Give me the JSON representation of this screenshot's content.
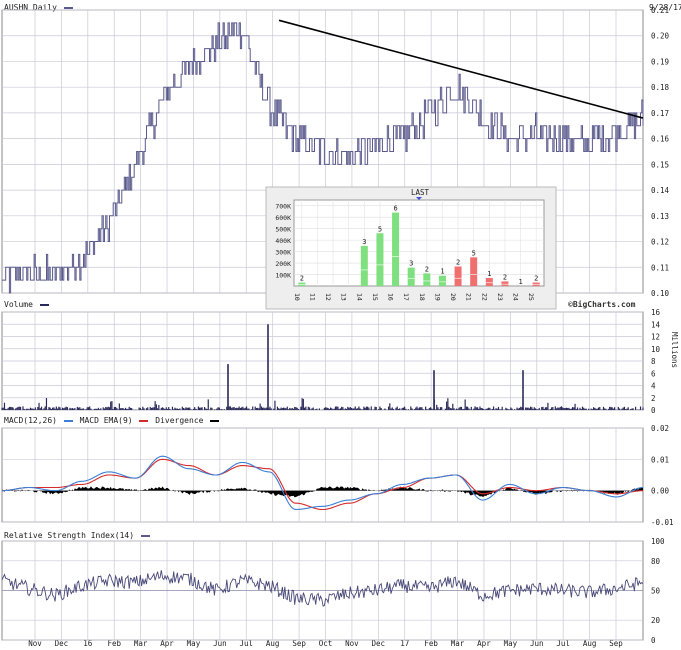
{
  "header": {
    "symbol_label": "AUSHN Daily",
    "date": "9/28/17"
  },
  "panels": {
    "volume_title": "Volume",
    "volume_units": "Millions",
    "macd_title": "MACD(12,26)",
    "macd_ema_label": "MACD EMA(9)",
    "macd_div_label": "Divergence",
    "rsi_title": "Relative Strength Index(14)",
    "credit": "©BigCharts.com"
  },
  "colors": {
    "price_line": "#5a5a8c",
    "trend_line": "#000000",
    "volume_bar": "#2a2a5a",
    "macd_line": "#3b7fd6",
    "ema_line": "#d62b2b",
    "divergence": "#000000",
    "vbp_up": "#7fe07f",
    "vbp_down": "#f07070",
    "grid": "#c9c9d6"
  },
  "chart_data": [
    {
      "type": "line",
      "name": "price",
      "title": "AUSHN Daily",
      "ylim": [
        0.1,
        0.21
      ],
      "yticks": [
        "0.21",
        "0.20",
        "0.19",
        "0.18",
        "0.17",
        "0.16",
        "0.15",
        "0.14",
        "0.13",
        "0.12",
        "0.11",
        "0.10"
      ],
      "x_months": [
        "Nov",
        "Dec",
        "16",
        "Feb",
        "Mar",
        "Apr",
        "May",
        "Jun",
        "Jul",
        "Aug",
        "Sep",
        "Oct",
        "Nov",
        "Dec",
        "17",
        "Feb",
        "Mar",
        "Apr",
        "May",
        "Jun",
        "Jul",
        "Aug",
        "Sep"
      ],
      "monthly_closes": [
        0.105,
        0.108,
        0.107,
        0.113,
        0.127,
        0.15,
        0.175,
        0.188,
        0.197,
        0.203,
        0.172,
        0.16,
        0.155,
        0.153,
        0.157,
        0.16,
        0.17,
        0.18,
        0.168,
        0.16,
        0.162,
        0.16,
        0.158,
        0.163,
        0.168
      ],
      "trendline": [
        {
          "date": "Aug 2016",
          "value": 0.206
        },
        {
          "date": "Sep 2017",
          "value": 0.168
        }
      ]
    },
    {
      "type": "bar",
      "name": "volume_by_price",
      "title": "LAST",
      "categories": [
        "10",
        "11",
        "12",
        "13",
        "14",
        "15",
        "16",
        "17",
        "18",
        "19",
        "20",
        "21",
        "22",
        "23",
        "24",
        "25"
      ],
      "values": [
        30,
        0,
        0,
        0,
        350,
        460,
        640,
        160,
        110,
        90,
        170,
        250,
        70,
        40,
        0,
        30
      ],
      "up_share": [
        1,
        0,
        0,
        0,
        1,
        1,
        1,
        1,
        1,
        1,
        0,
        0,
        0,
        0,
        0,
        0
      ],
      "labels": [
        "2",
        "",
        "",
        "",
        "3",
        "5",
        "6",
        "3",
        "2",
        "1",
        "2",
        "5",
        "1",
        "2",
        "1",
        "2"
      ],
      "yticks": [
        "700K",
        "600K",
        "500K",
        "400K",
        "300K",
        "200K",
        "100K"
      ],
      "ylim": [
        0,
        750
      ]
    },
    {
      "type": "bar",
      "name": "volume",
      "title": "Volume",
      "ylabel": "Millions",
      "ylim": [
        0,
        16
      ],
      "yticks": [
        "16",
        "14",
        "12",
        "10",
        "8",
        "6",
        "4",
        "2",
        "0"
      ],
      "spikes": [
        {
          "month": "Jul 2016",
          "value": 7.5
        },
        {
          "month": "Aug 2016",
          "value": 14
        },
        {
          "month": "Feb 2017",
          "value": 6.5
        },
        {
          "month": "May 2017",
          "value": 6.5
        }
      ],
      "baseline_value": 0.3
    },
    {
      "type": "line",
      "name": "macd",
      "title": "MACD(12,26)",
      "ylim": [
        -0.01,
        0.02
      ],
      "yticks": [
        "0.02",
        "0.01",
        "0.00",
        "-0.01"
      ],
      "series": [
        {
          "name": "MACD(12,26)",
          "values": [
            0.0,
            0.001,
            0.0,
            0.003,
            0.006,
            0.004,
            0.011,
            0.007,
            0.005,
            0.009,
            0.006,
            -0.006,
            -0.005,
            -0.003,
            -0.001,
            0.002,
            0.004,
            0.005,
            -0.003,
            0.002,
            -0.001,
            0.001,
            0.0,
            -0.002,
            0.001
          ]
        },
        {
          "name": "MACD EMA(9)",
          "values": [
            0.0,
            0.001,
            0.001,
            0.002,
            0.005,
            0.004,
            0.01,
            0.008,
            0.005,
            0.008,
            0.007,
            -0.004,
            -0.006,
            -0.004,
            -0.001,
            0.001,
            0.004,
            0.005,
            -0.001,
            0.001,
            0.0,
            0.001,
            0.0,
            -0.001,
            0.0
          ]
        }
      ]
    },
    {
      "type": "line",
      "name": "rsi",
      "title": "Relative Strength Index(14)",
      "ylim": [
        0,
        100
      ],
      "yticks": [
        "100",
        "80",
        "50",
        "20",
        "0"
      ],
      "values": [
        60,
        52,
        45,
        55,
        60,
        58,
        65,
        62,
        50,
        60,
        55,
        42,
        40,
        47,
        50,
        55,
        52,
        60,
        45,
        50,
        52,
        50,
        48,
        52,
        58
      ]
    }
  ]
}
